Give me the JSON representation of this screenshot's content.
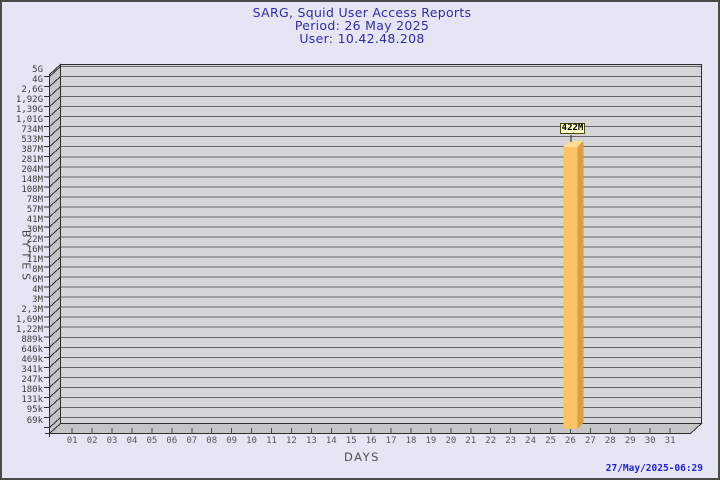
{
  "header": {
    "title": "SARG, Squid User Access Reports",
    "period": "Period: 26 May 2025",
    "user": "User: 10.42.48.208"
  },
  "footer": {
    "timestamp": "27/May/2025-06:29"
  },
  "chart_data": {
    "type": "bar",
    "title": "SARG, Squid User Access Reports",
    "subtitle": [
      "Period: 26 May 2025",
      "User: 10.42.48.208"
    ],
    "xlabel": "DAYS",
    "ylabel": "BYTES",
    "x_categories": [
      "01",
      "02",
      "03",
      "04",
      "05",
      "06",
      "07",
      "08",
      "09",
      "10",
      "11",
      "12",
      "13",
      "14",
      "15",
      "16",
      "17",
      "18",
      "19",
      "20",
      "21",
      "22",
      "23",
      "24",
      "25",
      "26",
      "27",
      "28",
      "29",
      "30",
      "31"
    ],
    "y_tick_labels_top_to_bottom": [
      "5G",
      "4G",
      "2,6G",
      "1,92G",
      "1,39G",
      "1,01G",
      "734M",
      "533M",
      "387M",
      "281M",
      "204M",
      "148M",
      "108M",
      "78M",
      "57M",
      "41M",
      "30M",
      "22M",
      "16M",
      "11M",
      "8M",
      "6M",
      "4M",
      "3M",
      "2,3M",
      "1,69M",
      "1,22M",
      "889k",
      "646k",
      "469k",
      "341k",
      "247k",
      "180k",
      "131k",
      "95k",
      "69k"
    ],
    "grid": true,
    "legend_position": "none",
    "bars": [
      {
        "day": "26",
        "value": "422M"
      }
    ],
    "colors": {
      "background": "#e5e5f4",
      "plot_wall": "#d5d5d7",
      "side_wall": "#c5c5c7",
      "gridline": "#656567",
      "outline": "#2f2f2f",
      "bar_face": "#fcc266",
      "bar_side": "#dca042",
      "bar_top": "#ffdc96",
      "value_label_bg": "#ffffc8",
      "title_text": "#2e2e9f",
      "timestamp_text": "#2323cc"
    }
  }
}
